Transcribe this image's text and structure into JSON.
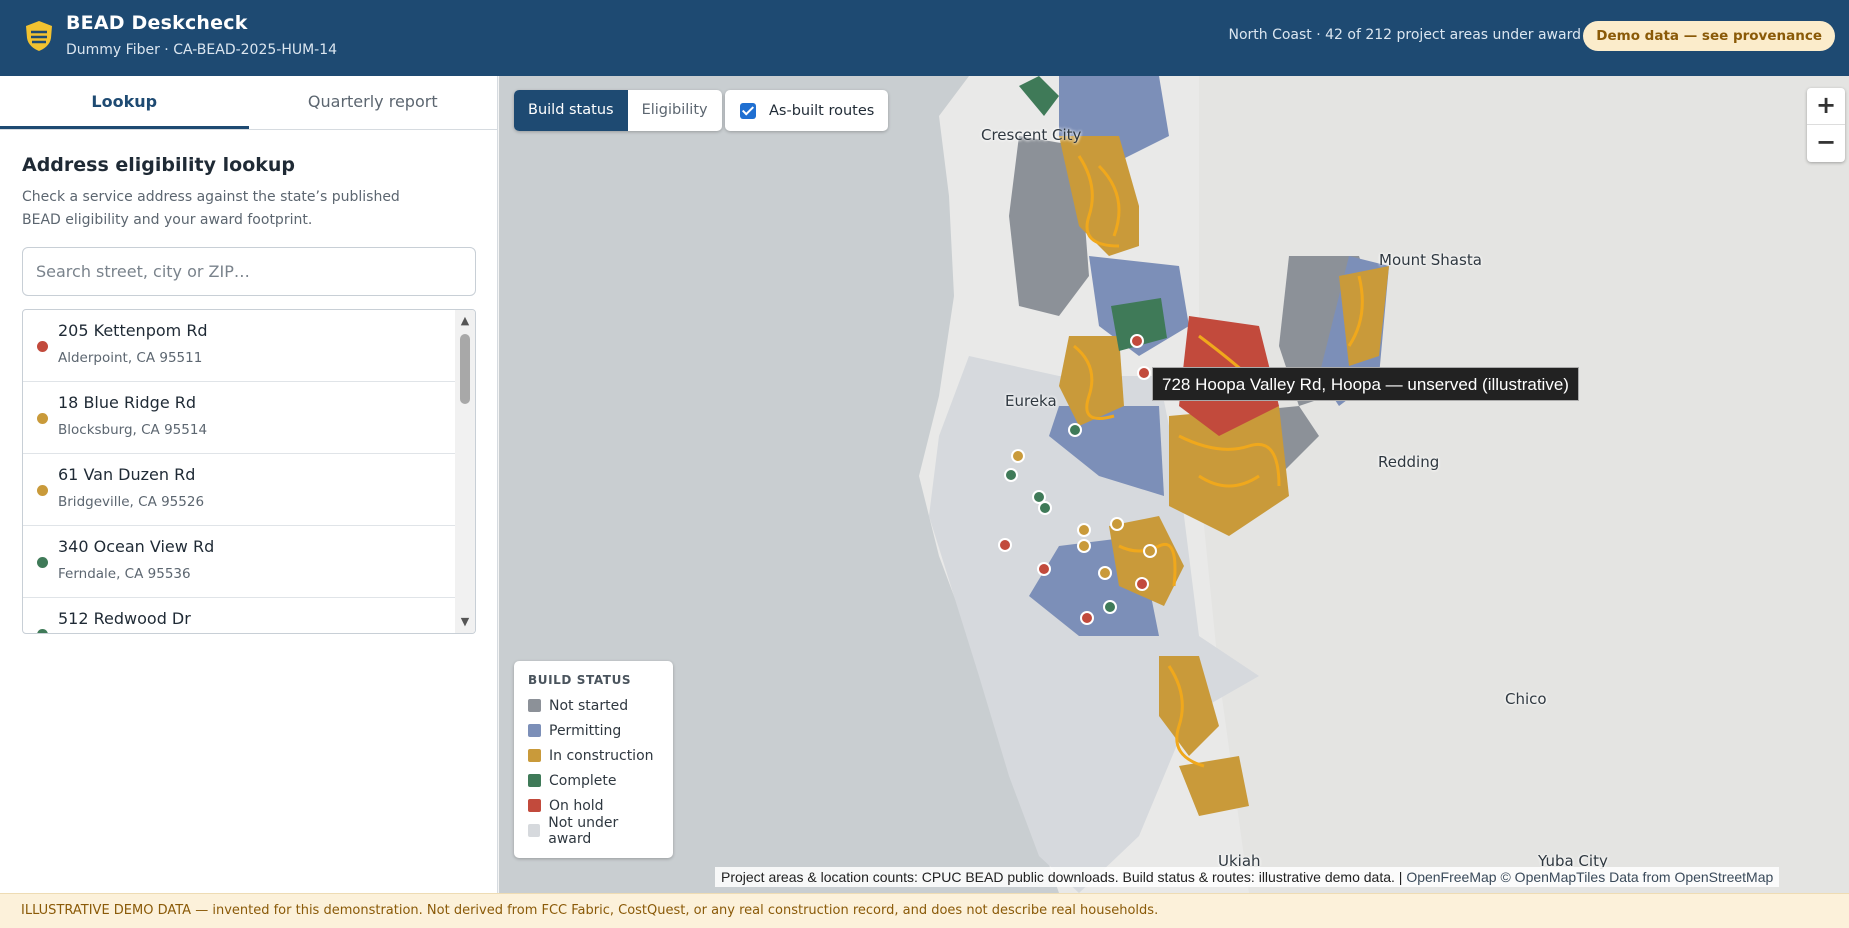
{
  "header": {
    "title": "BEAD Deskcheck",
    "subtitle": "Dummy Fiber · CA-BEAD-2025-HUM-14",
    "status": "North Coast · 42 of 212 project areas under award",
    "demo_pill": "Demo data — see provenance"
  },
  "sidebar": {
    "tabs": [
      {
        "label": "Lookup",
        "active": true
      },
      {
        "label": "Quarterly report",
        "active": false
      }
    ],
    "title": "Address eligibility lookup",
    "description": "Check a service address against the state’s published BEAD eligibility and your award footprint.",
    "search_placeholder": "Search street, city or ZIP…",
    "results": [
      {
        "address": "205 Kettenpom Rd",
        "city": "Alderpoint, CA 95511",
        "status": "on-hold"
      },
      {
        "address": "18 Blue Ridge Rd",
        "city": "Blocksburg, CA 95514",
        "status": "in-construction"
      },
      {
        "address": "61 Van Duzen Rd",
        "city": "Bridgeville, CA 95526",
        "status": "in-construction"
      },
      {
        "address": "340 Ocean View Rd",
        "city": "Ferndale, CA 95536",
        "status": "complete"
      },
      {
        "address": "512 Redwood Dr",
        "city": "",
        "status": "complete"
      }
    ]
  },
  "map": {
    "view_modes": [
      {
        "label": "Build status",
        "active": true
      },
      {
        "label": "Eligibility",
        "active": false
      }
    ],
    "routes_label": "As-built routes",
    "routes_checked": true,
    "zoom_in": "+",
    "zoom_out": "−",
    "place_labels": [
      "Crescent City",
      "Eureka",
      "Mount Shasta",
      "Redding",
      "Chico",
      "Yuba City",
      "Ukiah"
    ],
    "tooltip": "728 Hoopa Valley Rd, Hoopa — unserved (illustrative)",
    "legend": {
      "title": "BUILD STATUS",
      "items": [
        {
          "label": "Not started",
          "color": "#8c9198"
        },
        {
          "label": "Permitting",
          "color": "#7c8fb8"
        },
        {
          "label": "In construction",
          "color": "#c99a3a"
        },
        {
          "label": "Complete",
          "color": "#3f7a58"
        },
        {
          "label": "On hold",
          "color": "#c24a3c"
        },
        {
          "label": "Not under award",
          "color": "#d6d9dd"
        }
      ]
    },
    "attribution": {
      "text": "Project areas & location counts: CPUC BEAD public downloads. Build status & routes: illustrative demo data. |",
      "links": "OpenFreeMap © OpenMapTiles Data from OpenStreetMap"
    }
  },
  "status_colors": {
    "on-hold": "#c24a3c",
    "in-construction": "#c99a3a",
    "complete": "#3f7a58"
  },
  "footer": {
    "notice": "ILLUSTRATIVE DEMO DATA — invented for this demonstration. Not derived from FCC Fabric, CostQuest, or any real construction record, and does not describe real households."
  }
}
